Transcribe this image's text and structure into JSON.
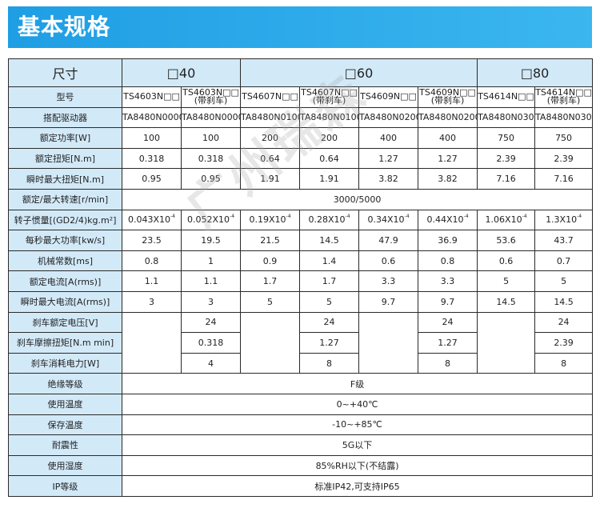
{
  "header": {
    "title": "基本规格"
  },
  "table": {
    "size_label": "尺寸",
    "groups": [
      "□40",
      "□60",
      "□80"
    ],
    "row_labels": {
      "model": "型号",
      "driver": "搭配驱动器",
      "power": "额定功率[W]",
      "torque": "额定扭矩[N.m]",
      "peak_torque": "瞬时最大扭矩[N.m]",
      "speed": "额定/最大转速[r/min]",
      "inertia": "转子惯量[(GD2/4)kg.m²]",
      "power_rate": "每秒最大功率[kw/s]",
      "time_const": "机械常数[ms]",
      "current": "额定电流[A(rms)]",
      "peak_current": "瞬时最大电流[A(rms)]",
      "brake_voltage": "刹车额定电压[V]",
      "brake_torque": "刹车摩擦扭矩[N.m  min]",
      "brake_power": "刹车消耗电力[W]",
      "insulation": "绝缘等级",
      "use_temp": "使用温度",
      "store_temp": "保存温度",
      "vibration": "耐震性",
      "use_humidity": "使用湿度",
      "ip": "IP等级"
    },
    "models": [
      {
        "l1": "TS4603N□□",
        "l2": ""
      },
      {
        "l1": "TS4603N□□",
        "l2": "(带刹车)"
      },
      {
        "l1": "TS4607N□□",
        "l2": ""
      },
      {
        "l1": "TS4607N□□",
        "l2": "(带刹车)"
      },
      {
        "l1": "TS4609N□□",
        "l2": ""
      },
      {
        "l1": "TS4609N□□",
        "l2": "(带刹车)"
      },
      {
        "l1": "TS4614N□□",
        "l2": ""
      },
      {
        "l1": "TS4614N□□",
        "l2": "(带刹车)"
      }
    ],
    "drivers": [
      "TA8480N0000",
      "TA8480N0000",
      "TA8480N0100",
      "TA8480N0100",
      "TA8480N0200",
      "TA8480N0200",
      "TA8480N0300",
      "TA8480N0300"
    ],
    "power": [
      "100",
      "100",
      "200",
      "200",
      "400",
      "400",
      "750",
      "750"
    ],
    "torque": [
      "0.318",
      "0.318",
      "0.64",
      "0.64",
      "1.27",
      "1.27",
      "2.39",
      "2.39"
    ],
    "peak_torque": [
      "0.95",
      "0.95",
      "1.91",
      "1.91",
      "3.82",
      "3.82",
      "7.16",
      "7.16"
    ],
    "speed": "3000/5000",
    "inertia": [
      "0.043X10",
      "0.052X10",
      "0.19X10",
      "0.28X10",
      "0.34X10",
      "0.44X10",
      "1.06X10",
      "1.3X10"
    ],
    "inertia_exp": "-4",
    "power_rate": [
      "23.5",
      "19.5",
      "21.5",
      "14.5",
      "47.9",
      "36.9",
      "53.6",
      "43.7"
    ],
    "time_const": [
      "0.8",
      "1",
      "0.9",
      "1.4",
      "0.6",
      "0.8",
      "0.6",
      "0.7"
    ],
    "current": [
      "1.1",
      "1.1",
      "1.7",
      "1.7",
      "3.3",
      "3.3",
      "5",
      "5"
    ],
    "peak_current": [
      "3",
      "3",
      "5",
      "5",
      "9.7",
      "9.7",
      "14.5",
      "14.5"
    ],
    "brake_voltage": [
      "24",
      "24",
      "24",
      "24"
    ],
    "brake_torque": [
      "0.318",
      "1.27",
      "1.27",
      "2.39"
    ],
    "brake_power": [
      "4",
      "8",
      "8",
      "8"
    ],
    "insulation": "F级",
    "use_temp": "0~+40℃",
    "store_temp": "-10~+85℃",
    "vibration": "5G以下",
    "use_humidity": "85%RH以下(不结露)",
    "ip": "标准IP42,可支持IP65"
  },
  "watermark": "广州瑞森"
}
